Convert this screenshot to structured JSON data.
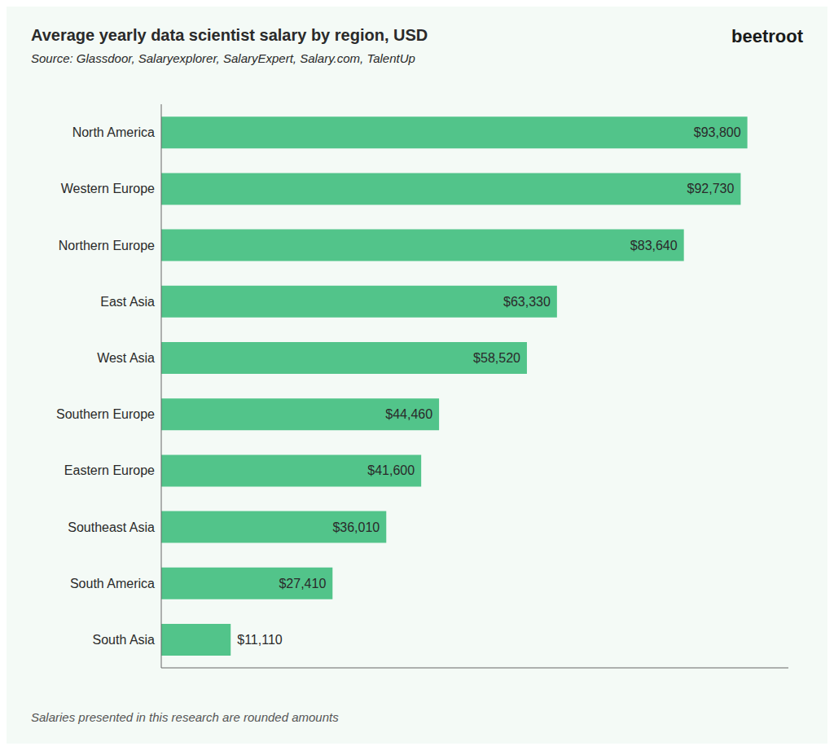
{
  "chart_data": {
    "type": "bar",
    "orientation": "horizontal",
    "title": "Average yearly data scientist salary by region, USD",
    "subtitle": "Source: Glassdoor, Salaryexplorer, SalaryExpert, Salary.com, TalentUp",
    "annotations": [
      "Salaries presented in this research are rounded amounts",
      "beetroot"
    ],
    "categories": [
      "North America",
      "Western Europe",
      "Northern Europe",
      "East Asia",
      "West Asia",
      "Southern Europe",
      "Eastern Europe",
      "Southeast Asia",
      "South America",
      "South Asia"
    ],
    "values": [
      93800,
      92730,
      83640,
      63330,
      58520,
      44460,
      41600,
      36010,
      27410,
      11110
    ],
    "value_labels": [
      "$93,800",
      "$92,730",
      "$83,640",
      "$63,330",
      "$58,520",
      "$44,460",
      "$41,600",
      "$36,010",
      "$27,410",
      "$11,110"
    ],
    "data_labels": true,
    "color": "#52C48A",
    "xlim": [
      0,
      100366
    ],
    "grid": false,
    "tick_labels": "y"
  }
}
